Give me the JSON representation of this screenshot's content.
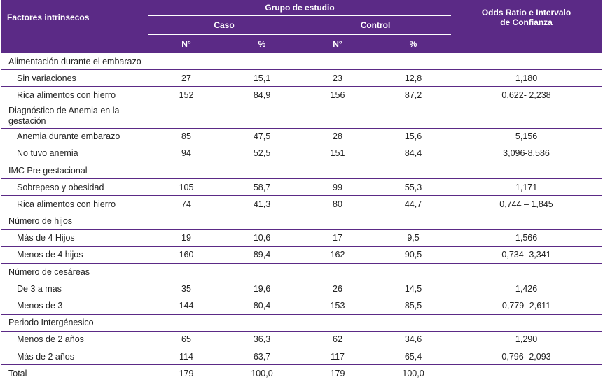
{
  "header": {
    "factores": "Factores intrinsecos",
    "grupo": "Grupo de estudio",
    "caso": "Caso",
    "control": "Control",
    "odds_line1": "Odds Ratio e Intervalo",
    "odds_line2": "de Confianza",
    "n": "N°",
    "pct": "%"
  },
  "groups": [
    {
      "title": "Alimentación durante el embarazo",
      "rows": [
        {
          "label": "Sin variaciones",
          "caso_n": "27",
          "caso_pct": "15,1",
          "control_n": "23",
          "control_pct": "12,8",
          "or": "1,180"
        },
        {
          "label": "Rica alimentos con hierro",
          "caso_n": "152",
          "caso_pct": "84,9",
          "control_n": "156",
          "control_pct": "87,2",
          "or": "0,622- 2,238"
        }
      ]
    },
    {
      "title": "Diagnóstico de Anemia en la gestación",
      "title_line1": "Diagnóstico de Anemia en la",
      "title_line2": "gestación",
      "rows": [
        {
          "label": "Anemia durante embarazo",
          "caso_n": "85",
          "caso_pct": "47,5",
          "control_n": "28",
          "control_pct": "15,6",
          "or": "5,156"
        },
        {
          "label": "No tuvo anemia",
          "caso_n": "94",
          "caso_pct": "52,5",
          "control_n": "151",
          "control_pct": "84,4",
          "or": "3,096-8,586"
        }
      ]
    },
    {
      "title": "IMC Pre gestacional",
      "rows": [
        {
          "label": "Sobrepeso y obesidad",
          "caso_n": "105",
          "caso_pct": "58,7",
          "control_n": "99",
          "control_pct": "55,3",
          "or": "1,171"
        },
        {
          "label": "Rica alimentos con hierro",
          "caso_n": "74",
          "caso_pct": "41,3",
          "control_n": "80",
          "control_pct": "44,7",
          "or": "0,744 – 1,845"
        }
      ]
    },
    {
      "title": "Número de hijos",
      "rows": [
        {
          "label": "Más de 4 Hijos",
          "caso_n": "19",
          "caso_pct": "10,6",
          "control_n": "17",
          "control_pct": "9,5",
          "or": "1,566"
        },
        {
          "label": "Menos de 4 hijos",
          "caso_n": "160",
          "caso_pct": "89,4",
          "control_n": "162",
          "control_pct": "90,5",
          "or": "0,734- 3,341"
        }
      ]
    },
    {
      "title": "Número de cesáreas",
      "rows": [
        {
          "label": "De 3 a mas",
          "caso_n": "35",
          "caso_pct": "19,6",
          "control_n": "26",
          "control_pct": "14,5",
          "or": "1,426"
        },
        {
          "label": "Menos de 3",
          "caso_n": "144",
          "caso_pct": "80,4",
          "control_n": "153",
          "control_pct": "85,5",
          "or": "0,779- 2,611"
        }
      ]
    },
    {
      "title": "Periodo Intergénesico",
      "rows": [
        {
          "label": "Menos de 2 años",
          "caso_n": "65",
          "caso_pct": "36,3",
          "control_n": "62",
          "control_pct": "34,6",
          "or": "1,290"
        },
        {
          "label": "Más de 2 años",
          "caso_n": "114",
          "caso_pct": "63,7",
          "control_n": "117",
          "control_pct": "65,4",
          "or": "0,796- 2,093"
        }
      ]
    }
  ],
  "total": {
    "label": "Total",
    "caso_n": "179",
    "caso_pct": "100,0",
    "control_n": "179",
    "control_pct": "100,0",
    "or": ""
  },
  "colors": {
    "header_bg": "#5b2a86",
    "header_text": "#ffffff",
    "rule": "#5b2a86"
  }
}
